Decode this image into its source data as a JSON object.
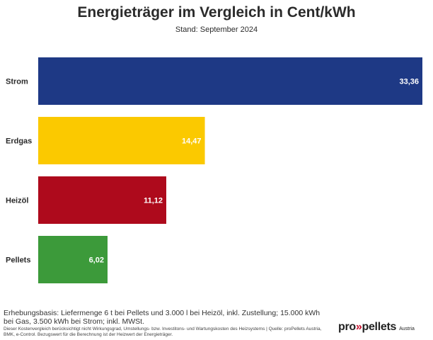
{
  "title": "Energieträger im Vergleich in Cent/kWh",
  "subtitle": "Stand: September 2024",
  "chart_data": {
    "type": "bar",
    "orientation": "horizontal",
    "title": "Energieträger im Vergleich in Cent/kWh",
    "subtitle": "Stand: September 2024",
    "categories": [
      "Strom",
      "Erdgas",
      "Heizöl",
      "Pellets"
    ],
    "values": [
      33.36,
      14.47,
      11.12,
      6.02
    ],
    "value_labels": [
      "33,36",
      "14,47",
      "11,12",
      "6,02"
    ],
    "colors": [
      "#1e3985",
      "#fbc900",
      "#ae0a1c",
      "#3c9a3a"
    ],
    "xlim": [
      0,
      33.36
    ],
    "grid": false,
    "legend": "none"
  },
  "footer": {
    "basis": "Erhebungsbasis: Liefermenge 6 t bei Pellets und 3.000 l bei Heizöl, inkl. Zustellung; 15.000 kWh bei Gas, 3.500 kWh bei Strom; inkl. MWSt.",
    "note": "Dieser Kostenvergleich berücksichtigt nicht Wirkungsgrad, Umstellungs- bzw. Investitons- und Wartungskosten des Heizsystems | Quelle: proPellets Austria, BMK, e-Control. Bezugswert für die Berechnung ist der Heizwert der Energieträger."
  },
  "logo": {
    "prefix": "pro",
    "arrows": "»",
    "name": "pellets",
    "country": "Austria"
  }
}
